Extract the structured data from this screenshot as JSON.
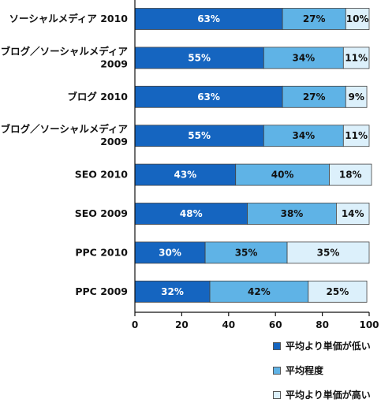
{
  "chart_data": {
    "type": "bar",
    "orientation": "horizontal",
    "stacked": true,
    "categories": [
      [
        "ソーシャルメディア 2010"
      ],
      [
        "ブログ／ソーシャルメディア",
        "2009"
      ],
      [
        "ブログ 2010"
      ],
      [
        "ブログ／ソーシャルメディア",
        "2009"
      ],
      [
        "SEO 2010"
      ],
      [
        "SEO 2009"
      ],
      [
        "PPC 2010"
      ],
      [
        "PPC 2009"
      ]
    ],
    "series": [
      {
        "name": "平均より単価が低い",
        "color": "#1565c0",
        "label_color": "#ffffff",
        "values": [
          63,
          55,
          63,
          55,
          43,
          48,
          30,
          32
        ]
      },
      {
        "name": "平均程度",
        "color": "#5fb3e6",
        "label_color": "#111111",
        "values": [
          27,
          34,
          27,
          34,
          40,
          38,
          35,
          42
        ]
      },
      {
        "name": "平均より単価が高い",
        "color": "#dcf0fb",
        "label_color": "#111111",
        "values": [
          10,
          11,
          9,
          11,
          18,
          14,
          35,
          25
        ]
      }
    ],
    "xlim": [
      0,
      100
    ],
    "xticks": [
      0,
      20,
      40,
      60,
      80,
      100
    ],
    "value_suffix": "%",
    "legend_position": "bottom-right",
    "grid": false
  }
}
